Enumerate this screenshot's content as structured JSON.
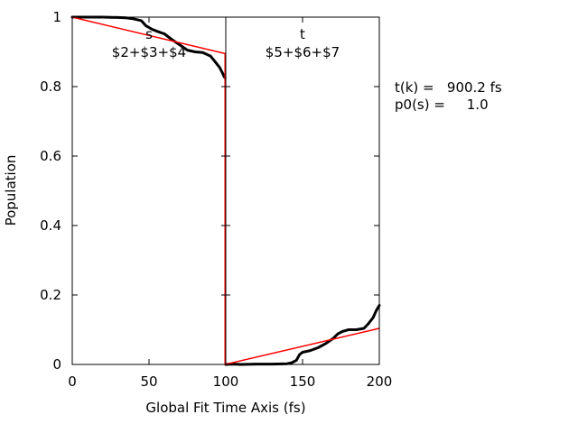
{
  "chart_data": {
    "type": "line",
    "xlabel": "Global Fit Time Axis (fs)",
    "ylabel": "Population",
    "xlim": [
      0,
      200
    ],
    "ylim": [
      0,
      1
    ],
    "xticks": [
      "0",
      "50",
      "100",
      "150",
      "200"
    ],
    "yticks": [
      "0",
      "0.2",
      "0.4",
      "0.6",
      "0.8",
      "1"
    ],
    "grid": false,
    "panels": [
      {
        "label": "s",
        "expr": "$2+$3+$4",
        "x_range": [
          0,
          100
        ]
      },
      {
        "label": "t",
        "expr": "$5+$6+$7",
        "x_range": [
          100,
          200
        ]
      }
    ],
    "annotations": [
      "t(k) =   900.2 fs",
      "p0(s) =     1.0"
    ],
    "colors": {
      "data": "#000000",
      "fit": "#ff0000"
    },
    "series": [
      {
        "style": "data",
        "x": [
          0,
          10,
          20,
          30,
          35,
          40,
          45,
          48,
          52,
          56,
          60,
          65,
          70,
          75,
          80,
          85,
          90,
          93,
          96,
          98,
          99,
          99.5
        ],
        "values": [
          1.0,
          1.0,
          1.0,
          0.999,
          0.998,
          0.995,
          0.99,
          0.975,
          0.965,
          0.958,
          0.952,
          0.935,
          0.92,
          0.905,
          0.9,
          0.898,
          0.888,
          0.872,
          0.855,
          0.838,
          0.828,
          0.825
        ]
      },
      {
        "style": "data",
        "x": [
          100,
          105,
          110,
          120,
          130,
          140,
          143,
          146,
          148,
          150,
          155,
          160,
          165,
          170,
          173,
          176,
          180,
          185,
          190,
          193,
          196,
          198,
          200
        ],
        "values": [
          0.0,
          0.001,
          0.0,
          0.001,
          0.001,
          0.002,
          0.005,
          0.012,
          0.028,
          0.035,
          0.04,
          0.048,
          0.06,
          0.075,
          0.088,
          0.095,
          0.1,
          0.1,
          0.104,
          0.118,
          0.135,
          0.155,
          0.17
        ]
      },
      {
        "style": "fit",
        "x": [
          0,
          99.5
        ],
        "values": [
          1.0,
          0.895
        ]
      },
      {
        "style": "fit",
        "x": [
          99.5,
          99.5
        ],
        "values": [
          0.895,
          0.0
        ]
      },
      {
        "style": "fit",
        "x": [
          99.5,
          200
        ],
        "values": [
          0.0,
          0.104
        ]
      }
    ]
  }
}
